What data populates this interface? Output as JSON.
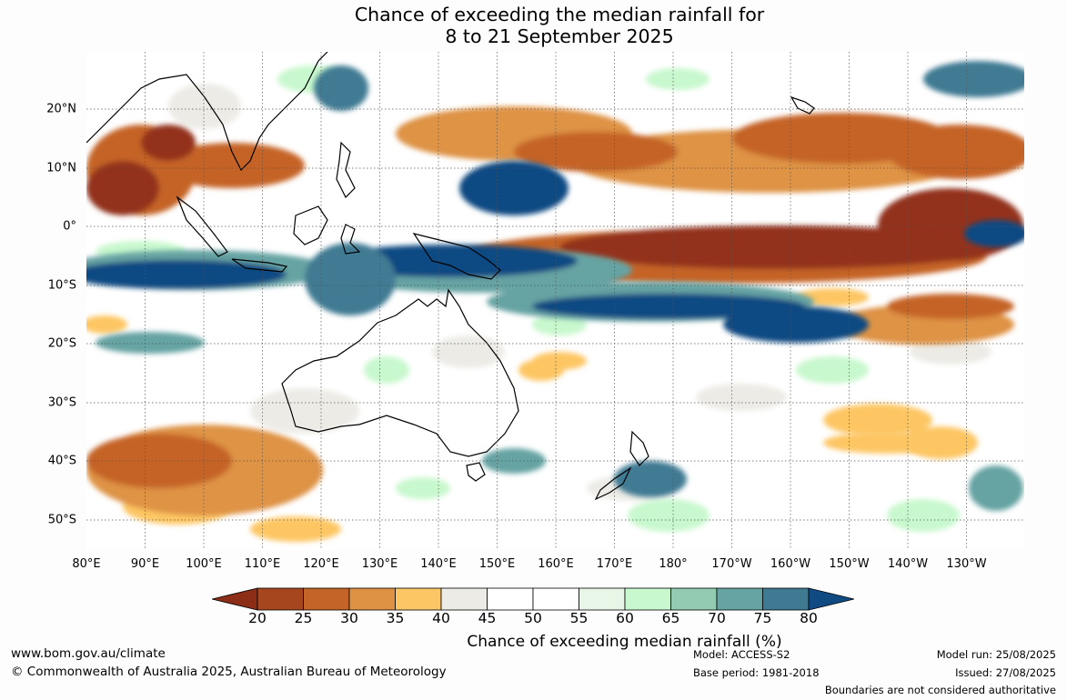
{
  "title": {
    "line1": "Chance of exceeding the median rainfall for",
    "line2": "8 to 21 September 2025"
  },
  "latitude_labels": [
    "20°N",
    "10°N",
    "0°",
    "10°S",
    "20°S",
    "30°S",
    "40°S",
    "50°S"
  ],
  "longitude_labels": [
    "80°E",
    "90°E",
    "100°E",
    "110°E",
    "120°E",
    "130°E",
    "140°E",
    "150°E",
    "160°E",
    "170°E",
    "180°",
    "170°W",
    "160°W",
    "150°W",
    "140°W",
    "130°W"
  ],
  "colorbar": {
    "title": "Chance of exceeding median rainfall (%)",
    "ticks": [
      "20",
      "25",
      "30",
      "35",
      "40",
      "45",
      "50",
      "55",
      "60",
      "65",
      "70",
      "75",
      "80"
    ],
    "below_color": "#8c2d18",
    "above_color": "#0f4a82",
    "bin_colors": [
      "#a6461f",
      "#c56428",
      "#de9344",
      "#fdc664",
      "#ecebe6",
      "#ffffff",
      "#ffffff",
      "#e8f6e8",
      "#c8f8cd",
      "#92cbb1",
      "#66a3a3",
      "#3f7a93"
    ]
  },
  "map_colors": {
    "dry_strong": "#93331c",
    "dry_mid": "#c56428",
    "dry_light": "#de9344",
    "dry_faint": "#fdc664",
    "neutral": "#ecebe6",
    "wet_faint": "#c8f8cd",
    "wet_mid": "#66a3a3",
    "wet_strong": "#0f4a82"
  },
  "footer": {
    "website": "www.bom.gov.au/climate",
    "copyright": "© Commonwealth of Australia 2025, Australian Bureau of Meteorology",
    "model": "Model: ACCESS-S2",
    "base_period": "Base period: 1981-2018",
    "model_run": "Model run: 25/08/2025",
    "issued": "Issued: 27/08/2025",
    "disclaimer": "Boundaries are not considered authoritative"
  }
}
